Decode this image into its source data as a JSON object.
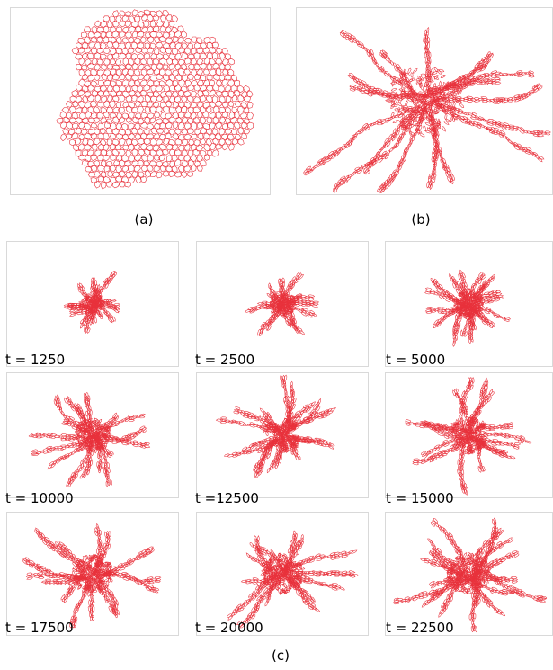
{
  "figure": {
    "caption_a": "(a)",
    "caption_b": "(b)",
    "caption_c": "(c)",
    "cell_color": "#e8323c",
    "panels_c": [
      {
        "label": "t = 1250"
      },
      {
        "label": "t = 2500"
      },
      {
        "label": "t = 5000"
      },
      {
        "label": "t = 10000"
      },
      {
        "label": "t =12500"
      },
      {
        "label": "t = 15000"
      },
      {
        "label": "t = 17500"
      },
      {
        "label": "t = 20000"
      },
      {
        "label": "t = 22500"
      }
    ]
  }
}
